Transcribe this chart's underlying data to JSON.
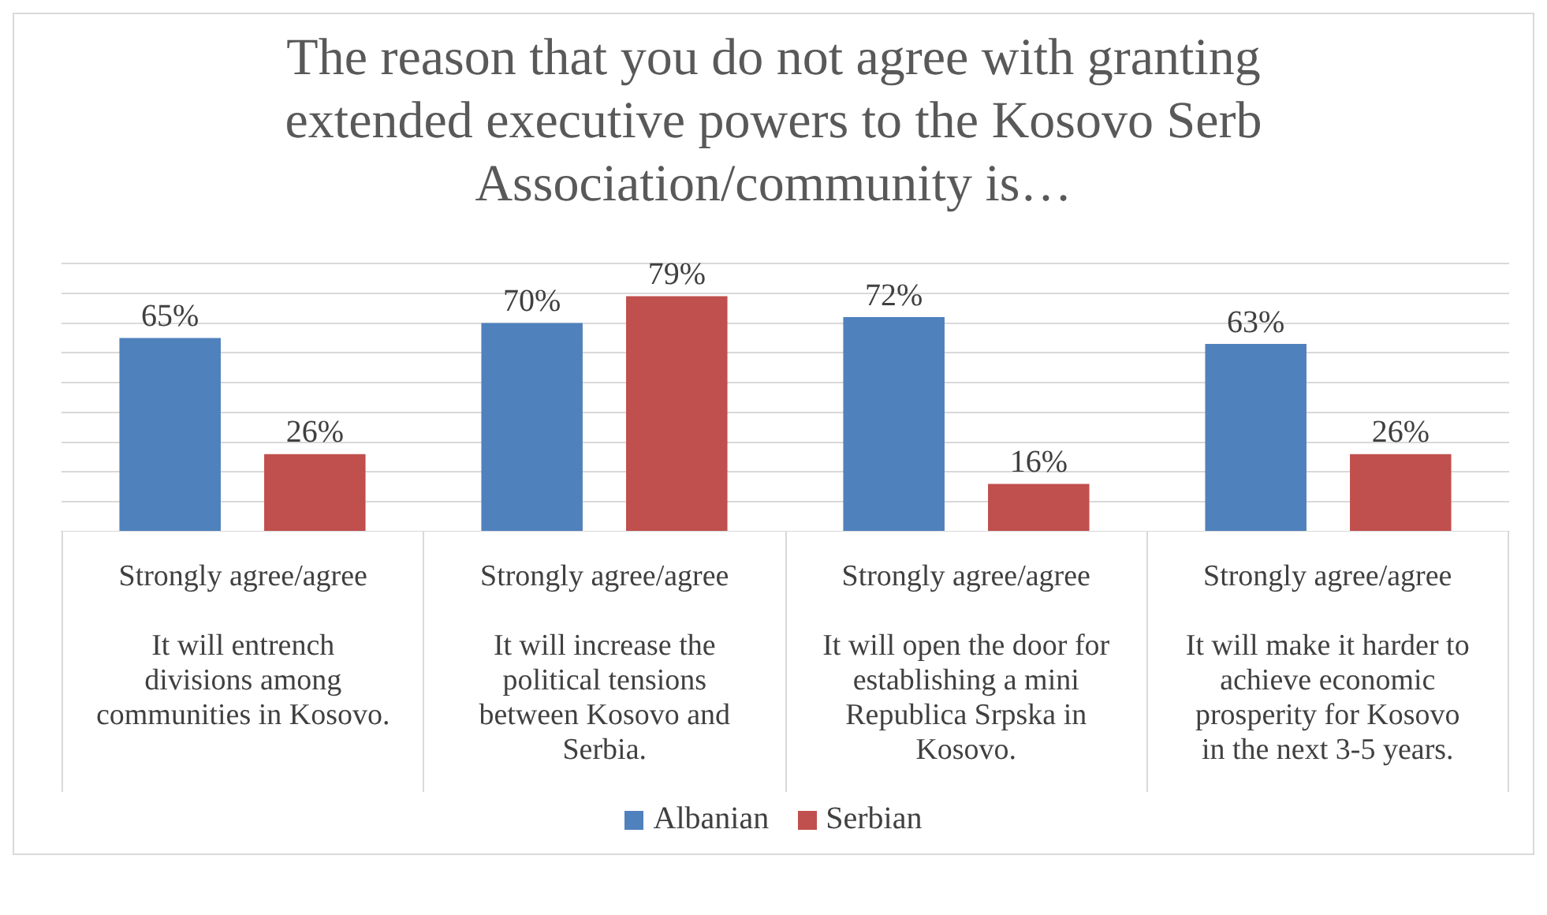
{
  "chart_data": {
    "type": "bar",
    "title": "The reason that you do not agree with granting extended executive powers to the Kosovo Serb Association/community is…",
    "categories": [
      "Strongly agree/agree\n\nIt will entrench\ndivisions among\ncommunities in Kosovo.",
      "Strongly agree/agree\n\nIt will increase the\npolitical tensions\nbetween Kosovo and\nSerbia.",
      "Strongly agree/agree\n\nIt will open the door for\nestablishing a mini\nRepublica Srpska in\nKosovo.",
      "Strongly agree/agree\n\nIt will make it harder to\nachieve economic\nprosperity for Kosovo\nin the next 3-5 years."
    ],
    "series": [
      {
        "name": "Albanian",
        "color": "#4f81bd",
        "values": [
          65,
          70,
          72,
          63
        ],
        "value_labels": [
          "65%",
          "70%",
          "72%",
          "63%"
        ]
      },
      {
        "name": "Serbian",
        "color": "#c0504d",
        "values": [
          26,
          79,
          16,
          26
        ],
        "value_labels": [
          "26%",
          "79%",
          "16%",
          "26%"
        ]
      }
    ],
    "ylim": [
      0,
      90
    ],
    "yticks": [
      {
        "value": 0,
        "label": null
      },
      {
        "value": 10,
        "label": null
      },
      {
        "value": 20,
        "label": null
      },
      {
        "value": 30,
        "label": null
      },
      {
        "value": 40,
        "label": null
      },
      {
        "value": 50,
        "label": null
      },
      {
        "value": 60,
        "label": null
      },
      {
        "value": 70,
        "label": null
      },
      {
        "value": 80,
        "label": null
      },
      {
        "value": 90,
        "label": null
      }
    ],
    "tick_labels": "x",
    "grid": "y",
    "legend": "bottom"
  }
}
